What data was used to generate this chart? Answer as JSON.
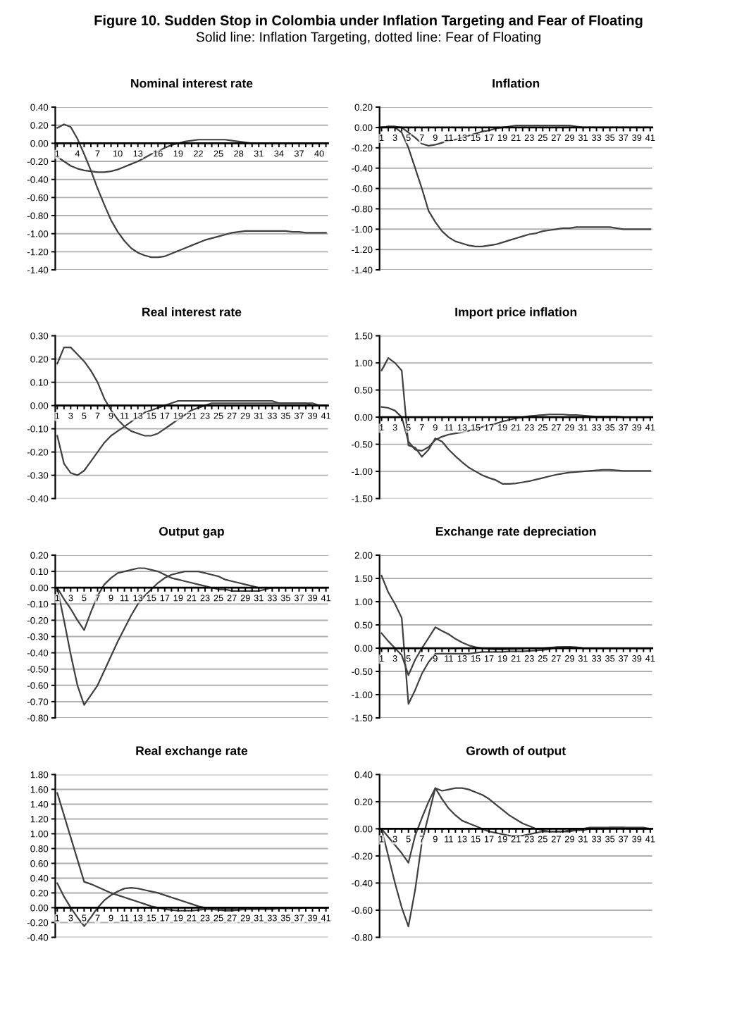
{
  "chart_data": [
    {
      "type": "line",
      "title": "Nominal interest rate",
      "grid": "y",
      "categories": [
        "1",
        null,
        null,
        "4",
        null,
        null,
        "7",
        null,
        null,
        "10",
        null,
        null,
        "13",
        null,
        null,
        "16",
        null,
        null,
        "19",
        null,
        null,
        "22",
        null,
        null,
        "25",
        null,
        null,
        "28",
        null,
        null,
        "31",
        null,
        null,
        "34",
        null,
        null,
        "37",
        null,
        null,
        "40",
        null
      ],
      "ylim": [
        -1.4,
        0.4
      ],
      "yticks": [
        {
          "value": -1.4,
          "label": "-1.40"
        },
        {
          "value": -1.2,
          "label": "-1.20"
        },
        {
          "value": -1.0,
          "label": "-1.00"
        },
        {
          "value": -0.8,
          "label": "-0.80"
        },
        {
          "value": -0.6,
          "label": "-0.60"
        },
        {
          "value": -0.4,
          "label": "-0.40"
        },
        {
          "value": -0.2,
          "label": "-0.20"
        },
        {
          "value": 0,
          "label": "0.00"
        },
        {
          "value": 0.2,
          "label": "0.20"
        },
        {
          "value": 0.4,
          "label": "0.40"
        }
      ],
      "series": [
        {
          "color": "#404040",
          "values": [
            0.17,
            0.21,
            0.18,
            0.05,
            -0.12,
            -0.3,
            -0.5,
            -0.68,
            -0.85,
            -0.98,
            -1.08,
            -1.16,
            -1.21,
            -1.24,
            -1.26,
            -1.26,
            -1.25,
            -1.22,
            -1.19,
            -1.16,
            -1.13,
            -1.1,
            -1.07,
            -1.05,
            -1.03,
            -1.01,
            -0.99,
            -0.98,
            -0.97,
            -0.97,
            -0.97,
            -0.97,
            -0.97,
            -0.97,
            -0.97,
            -0.98,
            -0.98,
            -0.99,
            -0.99,
            -0.99,
            -0.99
          ]
        },
        {
          "color": "#404040",
          "values": [
            -0.15,
            -0.2,
            -0.25,
            -0.28,
            -0.3,
            -0.31,
            -0.32,
            -0.32,
            -0.31,
            -0.29,
            -0.26,
            -0.23,
            -0.2,
            -0.16,
            -0.12,
            -0.09,
            -0.05,
            -0.02,
            0,
            0.02,
            0.03,
            0.04,
            0.04,
            0.04,
            0.04,
            0.04,
            0.03,
            0.02,
            0.01,
            0,
            0,
            0,
            0,
            0,
            0,
            0,
            0,
            0,
            0,
            0,
            0
          ]
        }
      ]
    },
    {
      "type": "line",
      "title": "Inflation",
      "grid": "y",
      "categories": [
        "1",
        null,
        "3",
        null,
        "5",
        null,
        "7",
        null,
        "9",
        null,
        "11",
        null,
        "13",
        null,
        "15",
        null,
        "17",
        null,
        "19",
        null,
        "21",
        null,
        "23",
        null,
        "25",
        null,
        "27",
        null,
        "29",
        null,
        "31",
        null,
        "33",
        null,
        "35",
        null,
        "37",
        null,
        "39",
        null,
        "41"
      ],
      "ylim": [
        -1.4,
        0.2
      ],
      "yticks": [
        {
          "value": -1.4,
          "label": "-1.40"
        },
        {
          "value": -1.2,
          "label": "-1.20"
        },
        {
          "value": -1.0,
          "label": "-1.00"
        },
        {
          "value": -0.8,
          "label": "-0.80"
        },
        {
          "value": -0.6,
          "label": "-0.60"
        },
        {
          "value": -0.4,
          "label": "-0.40"
        },
        {
          "value": -0.2,
          "label": "-0.20"
        },
        {
          "value": 0,
          "label": "0.00"
        },
        {
          "value": 0.2,
          "label": "0.20"
        }
      ],
      "series": [
        {
          "color": "#404040",
          "values": [
            0,
            0.01,
            0,
            -0.05,
            -0.2,
            -0.4,
            -0.6,
            -0.82,
            -0.93,
            -1.02,
            -1.08,
            -1.12,
            -1.14,
            -1.16,
            -1.17,
            -1.17,
            -1.16,
            -1.15,
            -1.13,
            -1.11,
            -1.09,
            -1.07,
            -1.05,
            -1.04,
            -1.02,
            -1.01,
            -1,
            -0.99,
            -0.99,
            -0.98,
            -0.98,
            -0.98,
            -0.98,
            -0.98,
            -0.98,
            -0.99,
            -1,
            -1,
            -1,
            -1,
            -1
          ]
        },
        {
          "color": "#404040",
          "values": [
            0,
            0.01,
            0.01,
            0,
            -0.05,
            -0.1,
            -0.16,
            -0.18,
            -0.17,
            -0.15,
            -0.13,
            -0.12,
            -0.1,
            -0.08,
            -0.06,
            -0.04,
            -0.03,
            -0.01,
            0,
            0.01,
            0.02,
            0.02,
            0.02,
            0.02,
            0.02,
            0.02,
            0.02,
            0.02,
            0.02,
            0.01,
            0,
            0,
            0,
            0,
            0,
            0,
            0,
            0,
            0,
            0,
            0
          ]
        }
      ]
    },
    {
      "type": "line",
      "title": "Real interest rate",
      "grid": "y",
      "categories": [
        "1",
        null,
        "3",
        null,
        "5",
        null,
        "7",
        null,
        "9",
        null,
        "11",
        null,
        "13",
        null,
        "15",
        null,
        "17",
        null,
        "19",
        null,
        "21",
        null,
        "23",
        null,
        "25",
        null,
        "27",
        null,
        "29",
        null,
        "31",
        null,
        "33",
        null,
        "35",
        null,
        "37",
        null,
        "39",
        null,
        "41"
      ],
      "ylim": [
        -0.4,
        0.3
      ],
      "yticks": [
        {
          "value": -0.4,
          "label": "-0.40"
        },
        {
          "value": -0.3,
          "label": "-0.30"
        },
        {
          "value": -0.2,
          "label": "-0.20"
        },
        {
          "value": -0.1,
          "label": "-0.10"
        },
        {
          "value": 0,
          "label": "0.00"
        },
        {
          "value": 0.1,
          "label": "0.10"
        },
        {
          "value": 0.2,
          "label": "0.20"
        },
        {
          "value": 0.3,
          "label": "0.30"
        }
      ],
      "series": [
        {
          "color": "#404040",
          "values": [
            0.18,
            0.25,
            0.25,
            0.22,
            0.19,
            0.15,
            0.1,
            0.03,
            -0.02,
            -0.06,
            -0.09,
            -0.11,
            -0.12,
            -0.13,
            -0.13,
            -0.12,
            -0.1,
            -0.08,
            -0.06,
            -0.04,
            -0.02,
            -0.01,
            0,
            0.01,
            0.01,
            0.01,
            0.01,
            0.01,
            0.01,
            0.01,
            0.01,
            0.01,
            0.01,
            0.01,
            0.01,
            0.01,
            0.01,
            0.01,
            0,
            0,
            0
          ]
        },
        {
          "color": "#404040",
          "values": [
            -0.13,
            -0.25,
            -0.29,
            -0.3,
            -0.28,
            -0.24,
            -0.2,
            -0.16,
            -0.13,
            -0.11,
            -0.09,
            -0.07,
            -0.05,
            -0.03,
            -0.02,
            -0.01,
            0,
            0.01,
            0.02,
            0.02,
            0.02,
            0.02,
            0.02,
            0.02,
            0.02,
            0.02,
            0.02,
            0.02,
            0.02,
            0.02,
            0.02,
            0.02,
            0.02,
            0.01,
            0.01,
            0.01,
            0.01,
            0.01,
            0.01,
            0,
            0
          ]
        }
      ]
    },
    {
      "type": "line",
      "title": "Import price inflation",
      "grid": "y",
      "categories": [
        "1",
        null,
        "3",
        null,
        "5",
        null,
        "7",
        null,
        "9",
        null,
        "11",
        null,
        "13",
        null,
        "15",
        null,
        "17",
        null,
        "19",
        null,
        "21",
        null,
        "23",
        null,
        "25",
        null,
        "27",
        null,
        "29",
        null,
        "31",
        null,
        "33",
        null,
        "35",
        null,
        "37",
        null,
        "39",
        null,
        "41"
      ],
      "ylim": [
        -1.5,
        1.5
      ],
      "yticks": [
        {
          "value": -1.5,
          "label": "-1.50"
        },
        {
          "value": -1.0,
          "label": "-1.00"
        },
        {
          "value": -0.5,
          "label": "-0.50"
        },
        {
          "value": 0,
          "label": "0.00"
        },
        {
          "value": 0.5,
          "label": "0.50"
        },
        {
          "value": 1.0,
          "label": "1.00"
        },
        {
          "value": 1.5,
          "label": "1.50"
        }
      ],
      "series": [
        {
          "color": "#404040",
          "values": [
            0.86,
            1.09,
            1.0,
            0.86,
            -0.52,
            -0.56,
            -0.73,
            -0.6,
            -0.39,
            -0.45,
            -0.6,
            -0.72,
            -0.83,
            -0.93,
            -1,
            -1.07,
            -1.12,
            -1.16,
            -1.23,
            -1.23,
            -1.22,
            -1.2,
            -1.18,
            -1.15,
            -1.12,
            -1.09,
            -1.06,
            -1.04,
            -1.02,
            -1.01,
            -1,
            -0.99,
            -0.98,
            -0.97,
            -0.97,
            -0.98,
            -0.99,
            -0.99,
            -0.99,
            -0.99,
            -0.99
          ]
        },
        {
          "color": "#404040",
          "values": [
            0.19,
            0.17,
            0.12,
            0,
            -0.45,
            -0.6,
            -0.62,
            -0.55,
            -0.42,
            -0.36,
            -0.32,
            -0.3,
            -0.28,
            -0.25,
            -0.22,
            -0.18,
            -0.15,
            -0.12,
            -0.08,
            -0.05,
            -0.02,
            0,
            0.02,
            0.03,
            0.04,
            0.05,
            0.05,
            0.05,
            0.04,
            0.04,
            0.03,
            0.02,
            0.01,
            0.01,
            0.01,
            0.01,
            0,
            0,
            0,
            0,
            0
          ]
        }
      ]
    },
    {
      "type": "line",
      "title": "Output gap",
      "grid": "y",
      "categories": [
        "1",
        null,
        "3",
        null,
        "5",
        null,
        "7",
        null,
        "9",
        null,
        "11",
        null,
        "13",
        null,
        "15",
        null,
        "17",
        null,
        "19",
        null,
        "21",
        null,
        "23",
        null,
        "25",
        null,
        "27",
        null,
        "29",
        null,
        "31",
        null,
        "33",
        null,
        "35",
        null,
        "37",
        null,
        "39",
        null,
        "41"
      ],
      "ylim": [
        -0.8,
        0.2
      ],
      "yticks": [
        {
          "value": -0.8,
          "label": "-0.80"
        },
        {
          "value": -0.7,
          "label": "-0.70"
        },
        {
          "value": -0.6,
          "label": "-0.60"
        },
        {
          "value": -0.5,
          "label": "-0.50"
        },
        {
          "value": -0.4,
          "label": "-0.40"
        },
        {
          "value": -0.3,
          "label": "-0.30"
        },
        {
          "value": -0.2,
          "label": "-0.20"
        },
        {
          "value": -0.1,
          "label": "-0.10"
        },
        {
          "value": 0,
          "label": "0.00"
        },
        {
          "value": 0.1,
          "label": "0.10"
        },
        {
          "value": 0.2,
          "label": "0.20"
        }
      ],
      "series": [
        {
          "color": "#404040",
          "values": [
            0,
            -0.2,
            -0.41,
            -0.6,
            -0.72,
            -0.66,
            -0.6,
            -0.51,
            -0.42,
            -0.33,
            -0.25,
            -0.17,
            -0.1,
            -0.05,
            -0.01,
            0.03,
            0.06,
            0.08,
            0.09,
            0.1,
            0.1,
            0.1,
            0.09,
            0.08,
            0.07,
            0.05,
            0.04,
            0.03,
            0.02,
            0.01,
            0,
            0,
            0,
            0,
            0,
            0,
            0,
            0,
            0,
            0,
            0
          ]
        },
        {
          "color": "#404040",
          "values": [
            0,
            -0.07,
            -0.13,
            -0.2,
            -0.26,
            -0.15,
            -0.05,
            0.02,
            0.06,
            0.09,
            0.1,
            0.11,
            0.12,
            0.12,
            0.11,
            0.1,
            0.08,
            0.06,
            0.05,
            0.04,
            0.03,
            0.02,
            0.01,
            0,
            -0.01,
            -0.01,
            -0.02,
            -0.02,
            -0.02,
            -0.02,
            -0.02,
            -0.01,
            0,
            0,
            0,
            0,
            0,
            0,
            0,
            0,
            0
          ]
        }
      ]
    },
    {
      "type": "line",
      "title": "Exchange rate depreciation",
      "grid": "y",
      "categories": [
        "1",
        null,
        "3",
        null,
        "5",
        null,
        "7",
        null,
        "9",
        null,
        "11",
        null,
        "13",
        null,
        "15",
        null,
        "17",
        null,
        "19",
        null,
        "21",
        null,
        "23",
        null,
        "25",
        null,
        "27",
        null,
        "29",
        null,
        "31",
        null,
        "33",
        null,
        "35",
        null,
        "37",
        null,
        "39",
        null,
        "41"
      ],
      "ylim": [
        -1.5,
        2.0
      ],
      "yticks": [
        {
          "value": -1.5,
          "label": "-1.50"
        },
        {
          "value": -1.0,
          "label": "-1.00"
        },
        {
          "value": -0.5,
          "label": "-0.50"
        },
        {
          "value": 0,
          "label": "0.00"
        },
        {
          "value": 0.5,
          "label": "0.50"
        },
        {
          "value": 1.0,
          "label": "1.00"
        },
        {
          "value": 1.5,
          "label": "1.50"
        },
        {
          "value": 2.0,
          "label": "2.00"
        }
      ],
      "series": [
        {
          "color": "#404040",
          "values": [
            1.56,
            1.2,
            0.95,
            0.65,
            -1.2,
            -0.9,
            -0.55,
            -0.3,
            -0.12,
            -0.12,
            -0.12,
            -0.12,
            -0.12,
            -0.12,
            -0.1,
            -0.08,
            -0.08,
            -0.08,
            -0.08,
            -0.07,
            -0.07,
            -0.07,
            -0.06,
            -0.05,
            -0.04,
            -0.02,
            0.02,
            0.03,
            0.03,
            0.02,
            0,
            0,
            0,
            0,
            0,
            0,
            0,
            0,
            0,
            0,
            0
          ]
        },
        {
          "color": "#404040",
          "values": [
            0.32,
            0.15,
            0,
            -0.15,
            -0.58,
            -0.25,
            0,
            0.22,
            0.45,
            0.37,
            0.3,
            0.2,
            0.12,
            0.06,
            0.02,
            0,
            -0.02,
            -0.03,
            -0.03,
            -0.02,
            -0.02,
            -0.01,
            0,
            0,
            0,
            0.01,
            0.02,
            0.02,
            0.02,
            0.01,
            0,
            0,
            0,
            0,
            0,
            0,
            0,
            0,
            0,
            0,
            0
          ]
        }
      ]
    },
    {
      "type": "line",
      "title": "Real exchange rate",
      "grid": "y",
      "categories": [
        "1",
        null,
        "3",
        null,
        "5",
        null,
        "7",
        null,
        "9",
        null,
        "11",
        null,
        "13",
        null,
        "15",
        null,
        "17",
        null,
        "19",
        null,
        "21",
        null,
        "23",
        null,
        "25",
        null,
        "27",
        null,
        "29",
        null,
        "31",
        null,
        "33",
        null,
        "35",
        null,
        "37",
        null,
        "39",
        null,
        "41"
      ],
      "ylim": [
        -0.4,
        1.8
      ],
      "yticks": [
        {
          "value": -0.4,
          "label": "-0.40"
        },
        {
          "value": -0.2,
          "label": "-0.20"
        },
        {
          "value": 0,
          "label": "0.00"
        },
        {
          "value": 0.2,
          "label": "0.20"
        },
        {
          "value": 0.4,
          "label": "0.40"
        },
        {
          "value": 0.6,
          "label": "0.60"
        },
        {
          "value": 0.8,
          "label": "0.80"
        },
        {
          "value": 1.0,
          "label": "1.00"
        },
        {
          "value": 1.2,
          "label": "1.20"
        },
        {
          "value": 1.4,
          "label": "1.40"
        },
        {
          "value": 1.6,
          "label": "1.60"
        },
        {
          "value": 1.8,
          "label": "1.80"
        }
      ],
      "series": [
        {
          "color": "#404040",
          "values": [
            1.55,
            1.25,
            0.95,
            0.65,
            0.35,
            0.32,
            0.28,
            0.24,
            0.2,
            0.17,
            0.14,
            0.11,
            0.08,
            0.05,
            0.02,
            0,
            -0.02,
            -0.03,
            -0.04,
            -0.04,
            -0.04,
            -0.03,
            -0.02,
            -0.02,
            -0.03,
            -0.04,
            -0.04,
            -0.03,
            -0.02,
            -0.02,
            -0.02,
            -0.02,
            -0.02,
            -0.01,
            -0.01,
            -0.01,
            -0.01,
            0,
            0,
            0,
            0
          ]
        },
        {
          "color": "#404040",
          "values": [
            0.33,
            0.15,
            0,
            -0.13,
            -0.25,
            -0.13,
            0,
            0.1,
            0.17,
            0.22,
            0.26,
            0.27,
            0.26,
            0.24,
            0.22,
            0.2,
            0.17,
            0.14,
            0.11,
            0.08,
            0.05,
            0.02,
            0,
            -0.01,
            -0.01,
            -0.02,
            -0.02,
            -0.02,
            -0.01,
            -0.01,
            -0.01,
            -0.01,
            0,
            0,
            0,
            0,
            0,
            0,
            0,
            0,
            0
          ]
        }
      ]
    },
    {
      "type": "line",
      "title": "Growth of output",
      "grid": "y",
      "categories": [
        "1",
        null,
        "3",
        null,
        "5",
        null,
        "7",
        null,
        "9",
        null,
        "11",
        null,
        "13",
        null,
        "15",
        null,
        "17",
        null,
        "19",
        null,
        "21",
        null,
        "23",
        null,
        "25",
        null,
        "27",
        null,
        "29",
        null,
        "31",
        null,
        "33",
        null,
        "35",
        null,
        "37",
        null,
        "39",
        null,
        "41"
      ],
      "ylim": [
        -0.8,
        0.4
      ],
      "yticks": [
        {
          "value": -0.8,
          "label": "-0.80"
        },
        {
          "value": -0.6,
          "label": "-0.60"
        },
        {
          "value": -0.4,
          "label": "-0.40"
        },
        {
          "value": -0.2,
          "label": "-0.20"
        },
        {
          "value": 0,
          "label": "0.00"
        },
        {
          "value": 0.2,
          "label": "0.20"
        },
        {
          "value": 0.4,
          "label": "0.40"
        }
      ],
      "annotations": [
        "Figure 10. Sudden Stop in Colombia under Inflation Targeting and Fear of Floating",
        "Solid line: Inflation Targeting, dotted line: Fear of Floating"
      ],
      "series": [
        {
          "color": "#404040",
          "values": [
            0,
            -0.2,
            -0.4,
            -0.58,
            -0.72,
            -0.45,
            -0.1,
            0.1,
            0.3,
            0.28,
            0.29,
            0.3,
            0.3,
            0.29,
            0.27,
            0.25,
            0.22,
            0.18,
            0.14,
            0.1,
            0.07,
            0.04,
            0.02,
            0,
            -0.01,
            -0.02,
            -0.02,
            -0.02,
            -0.01,
            -0.01,
            -0.01,
            0,
            0,
            0,
            0.01,
            0.01,
            0.01,
            0.01,
            0.01,
            0.01,
            0
          ]
        },
        {
          "color": "#404040",
          "values": [
            0,
            -0.06,
            -0.12,
            -0.18,
            -0.25,
            -0.05,
            0.08,
            0.2,
            0.3,
            0.22,
            0.15,
            0.1,
            0.06,
            0.04,
            0.02,
            0,
            -0.02,
            -0.03,
            -0.04,
            -0.05,
            -0.05,
            -0.05,
            -0.04,
            -0.03,
            -0.02,
            -0.02,
            -0.02,
            -0.02,
            -0.02,
            -0.01,
            0,
            0.01,
            0.01,
            0.01,
            0.01,
            0.01,
            0.01,
            0,
            0,
            0,
            0
          ]
        }
      ]
    }
  ]
}
